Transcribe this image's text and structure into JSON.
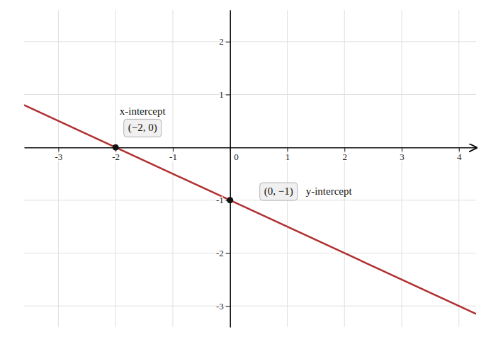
{
  "chart_data": {
    "type": "line",
    "series": [
      {
        "type": "line",
        "color": "#b03030",
        "x": [
          -3.6,
          4.3
        ],
        "values": [
          0.8,
          -3.15
        ]
      },
      {
        "type": "scatter",
        "color": "#111111",
        "x": [
          -2,
          0
        ],
        "values": [
          0,
          -1
        ]
      }
    ],
    "xlim": [
      -3.6,
      4.3
    ],
    "ylim": [
      -3.4,
      2.6
    ],
    "xticks": [
      -3,
      -2,
      -1,
      0,
      1,
      2,
      3,
      4
    ],
    "yticks": [
      -3,
      -2,
      -1,
      1,
      2
    ],
    "grid": true,
    "annotations": [
      "x-intercept",
      "(−2, 0)",
      "(0, −1)",
      "y-intercept"
    ]
  }
}
